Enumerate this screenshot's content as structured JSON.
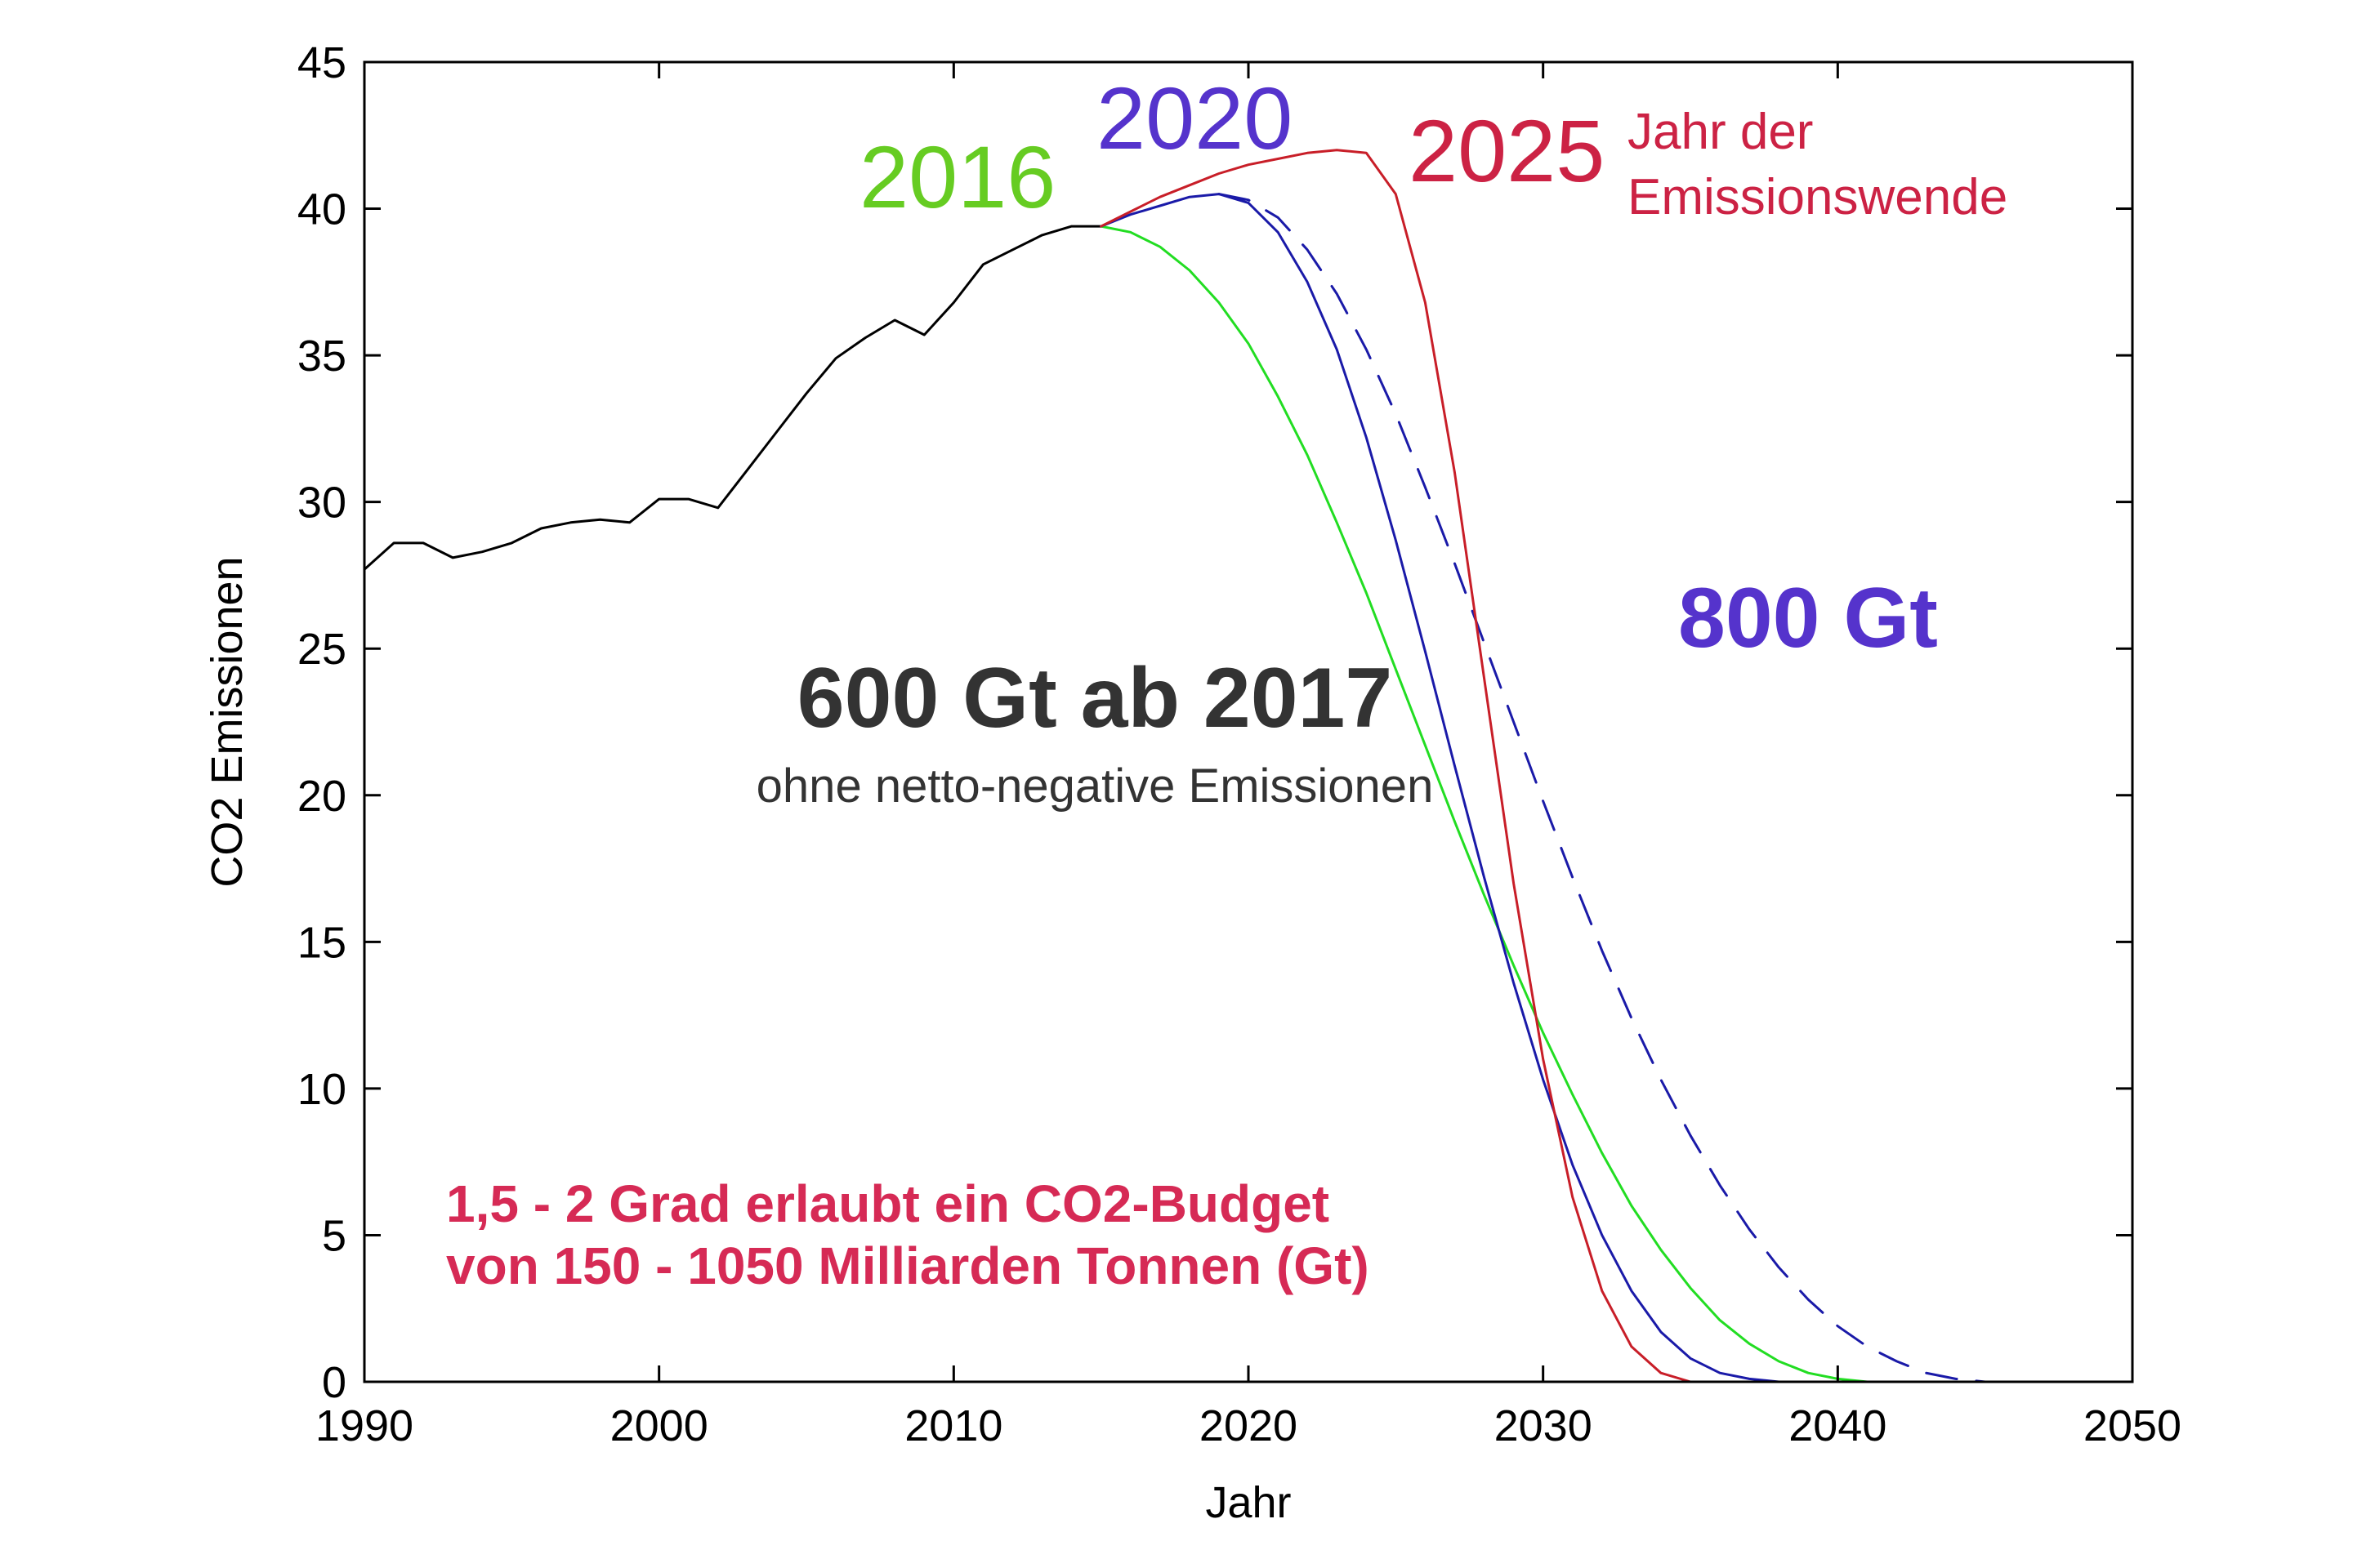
{
  "chart_data": {
    "type": "line",
    "title": "",
    "xlabel": "Jahr",
    "ylabel": "CO2 Emissionen",
    "xlim": [
      1990,
      2050
    ],
    "ylim": [
      0,
      45
    ],
    "xticks": [
      1990,
      2000,
      2010,
      2020,
      2030,
      2040,
      2050
    ],
    "yticks": [
      0,
      5,
      10,
      15,
      20,
      25,
      30,
      35,
      40,
      45
    ],
    "grid": false,
    "series": [
      {
        "color": "#000000",
        "dashed": false,
        "points": [
          [
            1990,
            27.7
          ],
          [
            1991,
            28.6
          ],
          [
            1992,
            28.6
          ],
          [
            1993,
            28.1
          ],
          [
            1994,
            28.3
          ],
          [
            1995,
            28.6
          ],
          [
            1996,
            29.1
          ],
          [
            1997,
            29.3
          ],
          [
            1998,
            29.4
          ],
          [
            1999,
            29.3
          ],
          [
            2000,
            30.1
          ],
          [
            2001,
            30.1
          ],
          [
            2002,
            29.8
          ],
          [
            2003,
            31.1
          ],
          [
            2004,
            32.4
          ],
          [
            2005,
            33.7
          ],
          [
            2006,
            34.9
          ],
          [
            2007,
            35.6
          ],
          [
            2008,
            36.2
          ],
          [
            2009,
            35.7
          ],
          [
            2010,
            36.8
          ],
          [
            2011,
            38.1
          ],
          [
            2012,
            38.6
          ],
          [
            2013,
            39.1
          ],
          [
            2014,
            39.4
          ],
          [
            2015,
            39.4
          ]
        ]
      },
      {
        "color": "#22dd22",
        "dashed": false,
        "points": [
          [
            2015,
            39.4
          ],
          [
            2016,
            39.2
          ],
          [
            2017,
            38.7
          ],
          [
            2018,
            37.9
          ],
          [
            2019,
            36.8
          ],
          [
            2020,
            35.4
          ],
          [
            2021,
            33.6
          ],
          [
            2022,
            31.6
          ],
          [
            2023,
            29.3
          ],
          [
            2024,
            26.9
          ],
          [
            2025,
            24.3
          ],
          [
            2026,
            21.7
          ],
          [
            2027,
            19.1
          ],
          [
            2028,
            16.6
          ],
          [
            2029,
            14.2
          ],
          [
            2030,
            11.9
          ],
          [
            2031,
            9.8
          ],
          [
            2032,
            7.8
          ],
          [
            2033,
            6.0
          ],
          [
            2034,
            4.5
          ],
          [
            2035,
            3.2
          ],
          [
            2036,
            2.1
          ],
          [
            2037,
            1.3
          ],
          [
            2038,
            0.7
          ],
          [
            2039,
            0.3
          ],
          [
            2040,
            0.1
          ],
          [
            2041,
            0.0
          ]
        ]
      },
      {
        "color": "#1a1aa8",
        "dashed": false,
        "points": [
          [
            2015,
            39.4
          ],
          [
            2016,
            39.8
          ],
          [
            2017,
            40.1
          ],
          [
            2018,
            40.4
          ],
          [
            2019,
            40.5
          ],
          [
            2020,
            40.2
          ],
          [
            2021,
            39.2
          ],
          [
            2022,
            37.5
          ],
          [
            2023,
            35.2
          ],
          [
            2024,
            32.2
          ],
          [
            2025,
            28.7
          ],
          [
            2026,
            24.9
          ],
          [
            2027,
            21.0
          ],
          [
            2028,
            17.2
          ],
          [
            2029,
            13.6
          ],
          [
            2030,
            10.3
          ],
          [
            2031,
            7.4
          ],
          [
            2032,
            5.0
          ],
          [
            2033,
            3.1
          ],
          [
            2034,
            1.7
          ],
          [
            2035,
            0.8
          ],
          [
            2036,
            0.3
          ],
          [
            2037,
            0.1
          ],
          [
            2038,
            0.0
          ]
        ]
      },
      {
        "color": "#1a1aa8",
        "dashed": true,
        "points": [
          [
            2019,
            40.5
          ],
          [
            2020,
            40.3
          ],
          [
            2021,
            39.7
          ],
          [
            2022,
            38.6
          ],
          [
            2023,
            37.1
          ],
          [
            2024,
            35.2
          ],
          [
            2025,
            33.0
          ],
          [
            2026,
            30.5
          ],
          [
            2027,
            27.9
          ],
          [
            2028,
            25.2
          ],
          [
            2029,
            22.5
          ],
          [
            2030,
            19.8
          ],
          [
            2031,
            17.2
          ],
          [
            2032,
            14.7
          ],
          [
            2033,
            12.4
          ],
          [
            2034,
            10.3
          ],
          [
            2035,
            8.4
          ],
          [
            2036,
            6.7
          ],
          [
            2037,
            5.2
          ],
          [
            2038,
            3.9
          ],
          [
            2039,
            2.8
          ],
          [
            2040,
            1.9
          ],
          [
            2041,
            1.2
          ],
          [
            2042,
            0.7
          ],
          [
            2043,
            0.3
          ],
          [
            2044,
            0.1
          ],
          [
            2045,
            0.0
          ]
        ]
      },
      {
        "color": "#c81e28",
        "dashed": false,
        "points": [
          [
            2015,
            39.4
          ],
          [
            2016,
            39.9
          ],
          [
            2017,
            40.4
          ],
          [
            2018,
            40.8
          ],
          [
            2019,
            41.2
          ],
          [
            2020,
            41.5
          ],
          [
            2021,
            41.7
          ],
          [
            2022,
            41.9
          ],
          [
            2023,
            42.0
          ],
          [
            2024,
            41.9
          ],
          [
            2025,
            40.5
          ],
          [
            2026,
            36.8
          ],
          [
            2027,
            31.0
          ],
          [
            2028,
            24.0
          ],
          [
            2029,
            17.0
          ],
          [
            2030,
            11.0
          ],
          [
            2031,
            6.3
          ],
          [
            2032,
            3.1
          ],
          [
            2033,
            1.2
          ],
          [
            2034,
            0.3
          ],
          [
            2035,
            0.0
          ]
        ]
      }
    ]
  },
  "annotations": {
    "year_2016": {
      "text": "2016",
      "color": "#66cc22"
    },
    "year_2020": {
      "text": "2020",
      "color": "#5533cc"
    },
    "year_2025": {
      "text": "2025",
      "color": "#cc2244"
    },
    "wende_line1": {
      "text": "Jahr der",
      "color": "#cc2244"
    },
    "wende_line2": {
      "text": "Emissionswende",
      "color": "#cc2244"
    },
    "gt800": {
      "text": "800 Gt",
      "color": "#5533cc"
    },
    "gt600": {
      "text": "600 Gt ab 2017",
      "color": "#333333"
    },
    "gt600_sub": {
      "text": "ohne netto-negative Emissionen"
    },
    "budget_line1": {
      "text": "1,5 - 2 Grad erlaubt ein CO2-Budget",
      "color": "#d62a55"
    },
    "budget_line2": {
      "text": "von 150 - 1050 Milliarden Tonnen (Gt)",
      "color": "#d62a55"
    }
  }
}
